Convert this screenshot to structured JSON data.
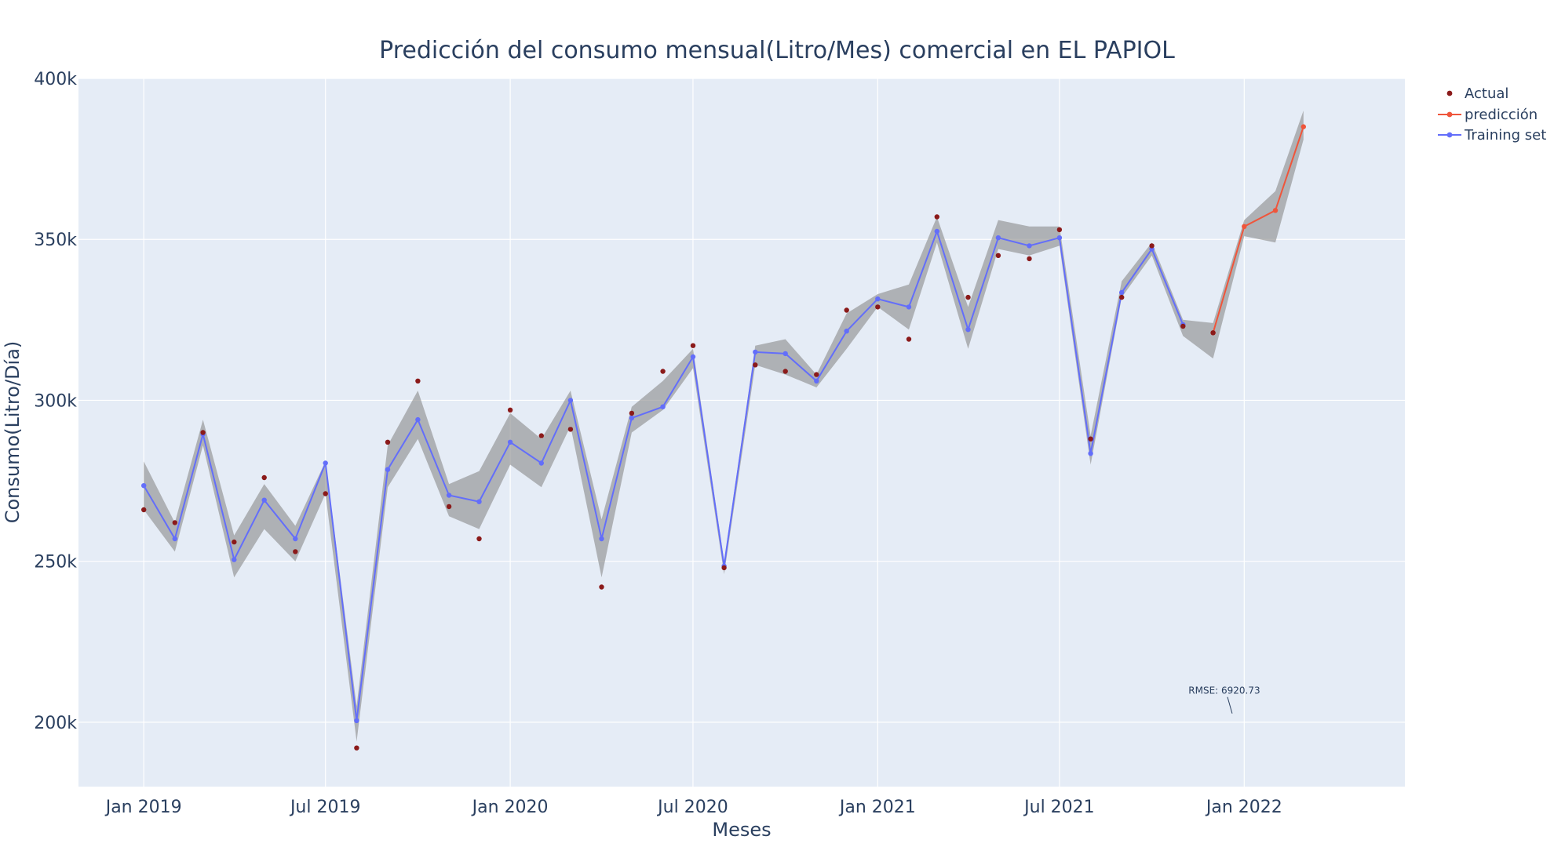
{
  "chart_data": {
    "type": "line",
    "title": "Predicción del consumo mensual(Litro/Mes) comercial en EL PAPIOL",
    "xlabel": "Meses",
    "ylabel": "Consumo(Litro/Día)",
    "ylim": [
      180000,
      400000
    ],
    "xlim": [
      "2018-10-28",
      "2022-06-10"
    ],
    "y_ticks": [
      200000,
      250000,
      300000,
      350000,
      400000
    ],
    "y_tick_labels": [
      "200k",
      "250k",
      "300k",
      "350k",
      "400k"
    ],
    "x_ticks": [
      "2019-01-01",
      "2019-07-01",
      "2020-01-01",
      "2020-07-01",
      "2021-01-01",
      "2021-07-01",
      "2022-01-01"
    ],
    "x_tick_labels": [
      "Jan 2019",
      "Jul 2019",
      "Jan 2020",
      "Jul 2020",
      "Jan 2021",
      "Jul 2021",
      "Jan 2022"
    ],
    "grid": true,
    "legend": "top-right",
    "colors": {
      "plot_bg": "#e5ecf6",
      "actual": "#8b1a1a",
      "prediction": "#ef553b",
      "training": "#636efa",
      "band": "#8c8c8c"
    },
    "months": [
      "2019-01",
      "2019-02",
      "2019-03",
      "2019-04",
      "2019-05",
      "2019-06",
      "2019-07",
      "2019-08",
      "2019-09",
      "2019-10",
      "2019-11",
      "2019-12",
      "2020-01",
      "2020-02",
      "2020-03",
      "2020-04",
      "2020-05",
      "2020-06",
      "2020-07",
      "2020-08",
      "2020-09",
      "2020-10",
      "2020-11",
      "2020-12",
      "2021-01",
      "2021-02",
      "2021-03",
      "2021-04",
      "2021-05",
      "2021-06",
      "2021-07",
      "2021-08",
      "2021-09",
      "2021-10",
      "2021-11",
      "2021-12",
      "2022-01",
      "2022-02",
      "2022-03"
    ],
    "series": [
      {
        "name": "Actual",
        "mode": "markers",
        "x": [
          "2019-01",
          "2019-02",
          "2019-03",
          "2019-04",
          "2019-05",
          "2019-06",
          "2019-07",
          "2019-08",
          "2019-09",
          "2019-10",
          "2019-11",
          "2019-12",
          "2020-01",
          "2020-02",
          "2020-03",
          "2020-04",
          "2020-05",
          "2020-06",
          "2020-07",
          "2020-08",
          "2020-09",
          "2020-10",
          "2020-11",
          "2020-12",
          "2021-01",
          "2021-02",
          "2021-03",
          "2021-04",
          "2021-05",
          "2021-06",
          "2021-07",
          "2021-08",
          "2021-09",
          "2021-10",
          "2021-11",
          "2021-12"
        ],
        "values": [
          266000,
          262000,
          290000,
          256000,
          276000,
          253000,
          271000,
          192000,
          287000,
          306000,
          267000,
          257000,
          297000,
          289000,
          291000,
          242000,
          296000,
          309000,
          317000,
          248000,
          311000,
          309000,
          308000,
          328000,
          329000,
          319000,
          357000,
          332000,
          345000,
          344000,
          353000,
          288000,
          332000,
          348000,
          323000,
          321000
        ]
      },
      {
        "name": "predicción",
        "mode": "lines+markers",
        "x": [
          "2021-12",
          "2022-01",
          "2022-02",
          "2022-03"
        ],
        "values": [
          321000,
          354000,
          359000,
          385000
        ]
      },
      {
        "name": "Training set",
        "mode": "lines+markers",
        "x": [
          "2019-01",
          "2019-02",
          "2019-03",
          "2019-04",
          "2019-05",
          "2019-06",
          "2019-07",
          "2019-08",
          "2019-09",
          "2019-10",
          "2019-11",
          "2019-12",
          "2020-01",
          "2020-02",
          "2020-03",
          "2020-04",
          "2020-05",
          "2020-06",
          "2020-07",
          "2020-08",
          "2020-09",
          "2020-10",
          "2020-11",
          "2020-12",
          "2021-01",
          "2021-02",
          "2021-03",
          "2021-04",
          "2021-05",
          "2021-06",
          "2021-07",
          "2021-08",
          "2021-09",
          "2021-10",
          "2021-11"
        ],
        "values": [
          273500,
          257000,
          289500,
          250500,
          269000,
          257000,
          280500,
          200500,
          278500,
          294000,
          270500,
          268500,
          287000,
          280500,
          300000,
          257000,
          294500,
          298000,
          313500,
          248500,
          315000,
          314500,
          306000,
          321500,
          331500,
          329000,
          352500,
          322000,
          350500,
          348000,
          350500,
          283500,
          333500,
          347000,
          323500
        ]
      }
    ],
    "band": {
      "x": [
        "2019-01",
        "2019-02",
        "2019-03",
        "2019-04",
        "2019-05",
        "2019-06",
        "2019-07",
        "2019-08",
        "2019-09",
        "2019-10",
        "2019-11",
        "2019-12",
        "2020-01",
        "2020-02",
        "2020-03",
        "2020-04",
        "2020-05",
        "2020-06",
        "2020-07",
        "2020-08",
        "2020-09",
        "2020-10",
        "2020-11",
        "2020-12",
        "2021-01",
        "2021-02",
        "2021-03",
        "2021-04",
        "2021-05",
        "2021-06",
        "2021-07",
        "2021-08",
        "2021-09",
        "2021-10",
        "2021-11",
        "2021-12",
        "2022-01",
        "2022-02",
        "2022-03"
      ],
      "upper": [
        281000,
        262000,
        294000,
        258000,
        274000,
        261000,
        281000,
        205000,
        286000,
        303000,
        274000,
        278000,
        296000,
        288000,
        303000,
        263000,
        298000,
        306000,
        316000,
        250000,
        317000,
        319000,
        308000,
        327000,
        333000,
        336000,
        357000,
        329000,
        356000,
        354000,
        354000,
        289000,
        337000,
        349000,
        325000,
        324000,
        356000,
        365000,
        390000
      ],
      "lower": [
        266000,
        253000,
        286000,
        245000,
        260000,
        250000,
        271000,
        194000,
        273000,
        288000,
        264000,
        260000,
        280000,
        273000,
        292000,
        245000,
        290000,
        297000,
        310000,
        246000,
        311000,
        308000,
        304000,
        316000,
        329000,
        322000,
        349000,
        316000,
        347000,
        345000,
        348000,
        280000,
        332000,
        345000,
        320000,
        313000,
        351000,
        349000,
        381000
      ]
    },
    "annotation": {
      "text": "RMSE: 6920.73",
      "x": "2021-12-20",
      "y": 202000
    }
  }
}
